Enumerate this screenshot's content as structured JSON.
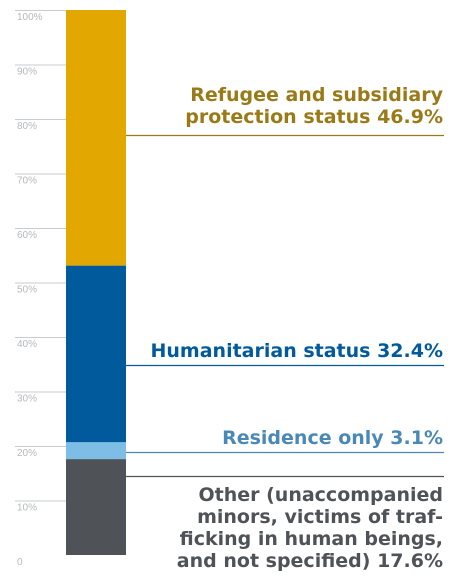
{
  "chart_data": {
    "type": "bar",
    "stacked": true,
    "categories": [
      ""
    ],
    "y_ticks": [
      "0",
      "10%",
      "20%",
      "30%",
      "40%",
      "50%",
      "60%",
      "70%",
      "80%",
      "90%",
      "100%"
    ],
    "ylim": [
      0,
      100
    ],
    "grid": true,
    "series": [
      {
        "name": "Other (unaccompanied minors, victims of trafficking in human beings, and not specified)",
        "value": 17.6,
        "color": "#4f5358"
      },
      {
        "name": "Residence only",
        "value": 3.1,
        "color": "#7dbde6"
      },
      {
        "name": "Humanitarian status",
        "value": 32.4,
        "color": "#005a9b"
      },
      {
        "name": "Refugee and subsidiary protection status",
        "value": 46.9,
        "color": "#e2a700"
      }
    ],
    "labels": [
      {
        "lines": [
          "Refugee and subsidiary",
          "protection status 46.9%"
        ],
        "color": "#9a7a16"
      },
      {
        "lines": [
          "Humanitarian status 32.4%"
        ],
        "color": "#005a9b"
      },
      {
        "lines": [
          "Residence only 3.1%"
        ],
        "color": "#4a88b5"
      },
      {
        "lines": [
          "Other (unaccompanied",
          "minors, victims of traf-",
          "ficking in human beings,",
          "and not specified) 17.6%"
        ],
        "color": "#4f5358"
      }
    ]
  }
}
